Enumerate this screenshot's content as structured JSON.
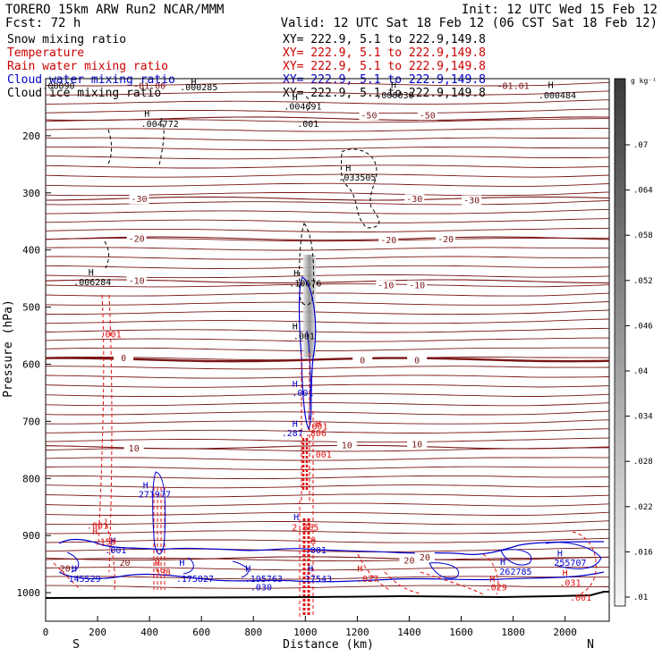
{
  "header": {
    "title": "TORERO   15km ARW    Run2     NCAR/MMM",
    "init": "Init: 12 UTC Wed 15 Feb 12",
    "fcst": "Fcst:    72 h",
    "valid": "Valid: 12 UTC Sat 18 Feb 12 (06 CST Sat 18 Feb 12)"
  },
  "legend": [
    {
      "label": "Snow mixing ratio",
      "xy": "XY= 222.9,   5.1 to 222.9,149.8",
      "color": "#000000"
    },
    {
      "label": "Temperature",
      "xy": "XY= 222.9,   5.1 to 222.9,149.8",
      "color": "#cc0000"
    },
    {
      "label": "Rain water mixing ratio",
      "xy": "XY= 222.9,   5.1 to 222.9,149.8",
      "color": "#cc0000"
    },
    {
      "label": "Cloud water mixing ratio",
      "xy": "XY= 222.9,   5.1 to 222.9,149.8",
      "color": "#0000cc"
    },
    {
      "label": "Cloud ice mixing ratio",
      "xy": "XY= 222.9,   5.1 to 222.9,149.8",
      "color": "#000000"
    }
  ],
  "colors": {
    "temperature": "#7a1616",
    "rain": "#e01010",
    "cloud_water": "#0000cc",
    "snow": "#000000",
    "freezing": "#7a1616"
  },
  "chart_data": {
    "type": "cross-section",
    "xlabel": "Distance (km)",
    "ylabel": "Pressure (hPa)",
    "xlim": [
      0,
      2170
    ],
    "ylim": [
      1050,
      100
    ],
    "x_ticks": [
      0,
      200,
      400,
      600,
      800,
      1000,
      1200,
      1400,
      1600,
      1800,
      2000
    ],
    "y_ticks": [
      200,
      300,
      400,
      500,
      600,
      700,
      800,
      900,
      1000
    ],
    "left_end_label": "S",
    "right_end_label": "N",
    "temperature_isotherms": [
      {
        "label": "-50",
        "p": 170
      },
      {
        "label": "-30",
        "p": 310
      },
      {
        "label": "-20",
        "p": 380
      },
      {
        "label": "-10",
        "p": 455
      },
      {
        "label": "0",
        "p": 592
      },
      {
        "label": "10",
        "p": 745
      },
      {
        "label": "20",
        "p": 940
      }
    ],
    "temperature_labels": [
      {
        "text": "-50",
        "x": 1245,
        "p": 163
      },
      {
        "text": "-50",
        "x": 1470,
        "p": 163
      },
      {
        "text": "-30",
        "x": 360,
        "p": 310
      },
      {
        "text": "-30",
        "x": 1420,
        "p": 310
      },
      {
        "text": "-30",
        "x": 1640,
        "p": 312
      },
      {
        "text": "-20",
        "x": 350,
        "p": 379
      },
      {
        "text": "-20",
        "x": 1320,
        "p": 382
      },
      {
        "text": "-20",
        "x": 1540,
        "p": 380
      },
      {
        "text": "-10",
        "x": 350,
        "p": 453
      },
      {
        "text": "-10",
        "x": 1310,
        "p": 461
      },
      {
        "text": "-10",
        "x": 1430,
        "p": 461
      },
      {
        "text": "0",
        "x": 300,
        "p": 588
      },
      {
        "text": "0",
        "x": 1220,
        "p": 592
      },
      {
        "text": "0",
        "x": 1430,
        "p": 592
      },
      {
        "text": "10",
        "x": 340,
        "p": 746
      },
      {
        "text": "10",
        "x": 1160,
        "p": 741
      },
      {
        "text": "10",
        "x": 1430,
        "p": 739
      },
      {
        "text": "20",
        "x": 1400,
        "p": 943
      },
      {
        "text": "20",
        "x": 1460,
        "p": 937
      }
    ],
    "top_labels": [
      {
        "text": "-81.01",
        "x": 1800,
        "p": 112
      },
      {
        "text": "-81.00",
        "x": 400,
        "p": 112
      }
    ],
    "maxima_labels": [
      {
        "text": ".00090",
        "x": 50,
        "p": 112,
        "color": "snow"
      },
      {
        "text": ".000285",
        "x": 590,
        "p": 114,
        "color": "snow"
      },
      {
        "text": ".000030",
        "x": 1345,
        "p": 128,
        "color": "snow"
      },
      {
        "text": ".000484",
        "x": 1970,
        "p": 128,
        "color": "snow"
      },
      {
        "text": ".004772",
        "x": 440,
        "p": 178,
        "color": "snow"
      },
      {
        "text": ".004691",
        "x": 990,
        "p": 148,
        "color": "snow"
      },
      {
        "text": ".001",
        "x": 1010,
        "p": 178,
        "color": "snow"
      },
      {
        "text": ".033505",
        "x": 1200,
        "p": 272,
        "color": "snow"
      },
      {
        "text": ".006284",
        "x": 180,
        "p": 455,
        "color": "snow"
      },
      {
        "text": ".10676",
        "x": 1000,
        "p": 458,
        "color": "snow"
      },
      {
        "text": ".001",
        "x": 250,
        "p": 547,
        "color": "rain"
      },
      {
        "text": ".001",
        "x": 995,
        "p": 550,
        "color": "snow"
      },
      {
        "text": ".001",
        "x": 990,
        "p": 649,
        "color": "cloud_water"
      },
      {
        "text": ".287",
        "x": 950,
        "p": 720,
        "color": "cloud_water"
      },
      {
        "text": ".806",
        "x": 1040,
        "p": 720,
        "color": "rain"
      },
      {
        "text": ".001",
        "x": 1045,
        "p": 708,
        "color": "rain"
      },
      {
        "text": ".001",
        "x": 1060,
        "p": 757,
        "color": "rain"
      },
      {
        "text": "271977",
        "x": 420,
        "p": 827,
        "color": "cloud_water"
      },
      {
        "text": ".001",
        "x": 200,
        "p": 882,
        "color": "rain"
      },
      {
        "text": ".159",
        "x": 230,
        "p": 910,
        "color": "rain"
      },
      {
        "text": ".001",
        "x": 270,
        "p": 925,
        "color": "cloud_water"
      },
      {
        "text": "2.865",
        "x": 1000,
        "p": 885,
        "color": "rain"
      },
      {
        "text": ".001",
        "x": 1040,
        "p": 925,
        "color": "cloud_water"
      },
      {
        "text": "20",
        "x": 75,
        "p": 957,
        "color": "temperature"
      },
      {
        "text": "20",
        "x": 305,
        "p": 947,
        "color": "temperature"
      },
      {
        "text": "145529",
        "x": 150,
        "p": 975,
        "color": "cloud_water"
      },
      {
        "text": ".398",
        "x": 440,
        "p": 963,
        "color": "rain"
      },
      {
        "text": ".175827",
        "x": 575,
        "p": 975,
        "color": "cloud_water"
      },
      {
        "text": ".195763",
        "x": 840,
        "p": 975,
        "color": "cloud_water"
      },
      {
        "text": ".030",
        "x": 830,
        "p": 990,
        "color": "cloud_water"
      },
      {
        "text": ".17543",
        "x": 1040,
        "p": 975,
        "color": "cloud_water"
      },
      {
        "text": ".027",
        "x": 1240,
        "p": 975,
        "color": "rain"
      },
      {
        "text": "262785",
        "x": 1810,
        "p": 962,
        "color": "cloud_water"
      },
      {
        "text": "255707",
        "x": 2020,
        "p": 947,
        "color": "cloud_water"
      },
      {
        "text": ".031",
        "x": 2020,
        "p": 982,
        "color": "rain"
      },
      {
        "text": ".029",
        "x": 1735,
        "p": 990,
        "color": "rain"
      },
      {
        "text": ".001",
        "x": 2060,
        "p": 1008,
        "color": "rain"
      }
    ],
    "h_markers": [
      {
        "x": 570,
        "p": 105,
        "color": "snow"
      },
      {
        "x": 1340,
        "p": 110,
        "color": "snow"
      },
      {
        "x": 1945,
        "p": 110,
        "color": "snow"
      },
      {
        "x": 390,
        "p": 160,
        "color": "snow"
      },
      {
        "x": 960,
        "p": 131,
        "color": "snow"
      },
      {
        "x": 1165,
        "p": 256,
        "color": "snow"
      },
      {
        "x": 175,
        "p": 438,
        "color": "snow"
      },
      {
        "x": 965,
        "p": 440,
        "color": "snow"
      },
      {
        "x": 960,
        "p": 533,
        "color": "snow"
      },
      {
        "x": 960,
        "p": 634,
        "color": "cloud_water"
      },
      {
        "x": 960,
        "p": 703,
        "color": "cloud_water"
      },
      {
        "x": 1050,
        "p": 703,
        "color": "rain"
      },
      {
        "x": 385,
        "p": 811,
        "color": "cloud_water"
      },
      {
        "x": 190,
        "p": 892,
        "color": "rain"
      },
      {
        "x": 260,
        "p": 908,
        "color": "cloud_water"
      },
      {
        "x": 965,
        "p": 867,
        "color": "cloud_water"
      },
      {
        "x": 1030,
        "p": 908,
        "color": "rain"
      },
      {
        "x": 430,
        "p": 947,
        "color": "rain"
      },
      {
        "x": 525,
        "p": 947,
        "color": "cloud_water"
      },
      {
        "x": 110,
        "p": 957,
        "color": "cloud_water"
      },
      {
        "x": 780,
        "p": 957,
        "color": "cloud_water"
      },
      {
        "x": 1020,
        "p": 957,
        "color": "cloud_water"
      },
      {
        "x": 1210,
        "p": 957,
        "color": "rain"
      },
      {
        "x": 1760,
        "p": 945,
        "color": "cloud_water"
      },
      {
        "x": 1980,
        "p": 930,
        "color": "cloud_water"
      },
      {
        "x": 2000,
        "p": 965,
        "color": "rain"
      },
      {
        "x": 1720,
        "p": 975,
        "color": "rain"
      }
    ],
    "colorbar": {
      "unit": "g kg⁻¹",
      "ticks": [
        ".07",
        ".064",
        ".058",
        ".052",
        ".046",
        ".04",
        ".034",
        ".028",
        ".022",
        ".016",
        ".01"
      ]
    }
  }
}
